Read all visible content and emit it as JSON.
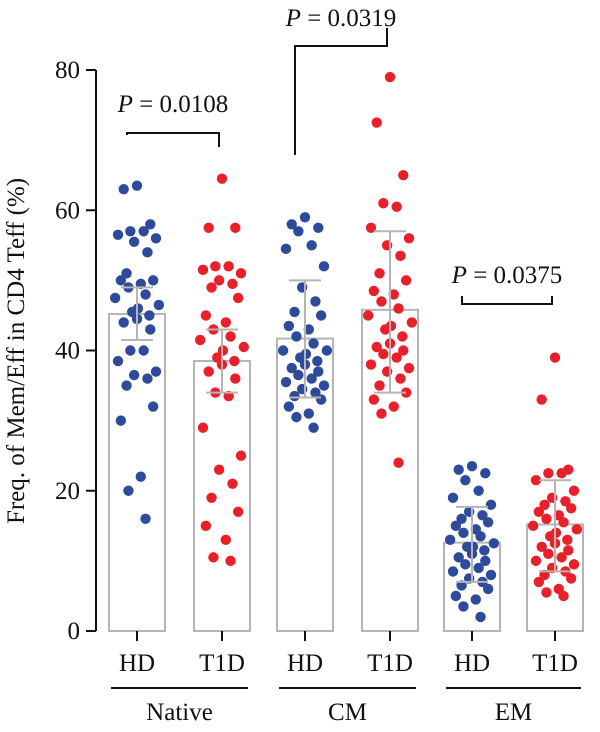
{
  "chart_data": {
    "type": "bar",
    "ylabel": "Freq. of Mem/Eff in CD4 Teff (%)",
    "ylim": [
      0,
      80
    ],
    "yticks": [
      0,
      20,
      40,
      60,
      80
    ],
    "grid": false,
    "colors": {
      "HD": "#2e4b9b",
      "T1D": "#e8202a",
      "bar_outline": "#b5b5b5",
      "axis": "#111111"
    },
    "groups": [
      {
        "name": "Native",
        "bars": [
          {
            "label": "HD",
            "mean": 45.2,
            "error": [
              41.5,
              49.0
            ],
            "points": [
              63.5,
              63.0,
              58.0,
              57.0,
              57.0,
              56.5,
              56.0,
              55.5,
              54.0,
              51.0,
              50.0,
              50.0,
              49.5,
              49.0,
              48.0,
              47.5,
              46.5,
              46.0,
              45.5,
              45.0,
              44.5,
              44.0,
              43.0,
              40.0,
              40.0,
              38.5,
              37.0,
              36.5,
              36.0,
              35.0,
              32.0,
              30.0,
              22.0,
              20.0,
              16.0
            ]
          },
          {
            "label": "T1D",
            "mean": 38.5,
            "error": [
              34.0,
              43.0
            ],
            "points": [
              64.5,
              57.5,
              57.5,
              52.0,
              52.0,
              51.5,
              51.0,
              50.0,
              49.5,
              49.0,
              47.5,
              45.0,
              44.0,
              43.0,
              42.0,
              41.5,
              40.5,
              40.0,
              39.0,
              38.5,
              38.0,
              37.0,
              36.0,
              34.0,
              33.5,
              29.0,
              25.0,
              23.0,
              21.0,
              19.0,
              17.0,
              15.0,
              13.0,
              10.5,
              10.0
            ]
          }
        ],
        "pvalue": "P = 0.0108"
      },
      {
        "name": "CM",
        "bars": [
          {
            "label": "HD",
            "mean": 41.7,
            "error": [
              33.3,
              50.0
            ],
            "points": [
              59.0,
              58.0,
              57.5,
              57.0,
              55.0,
              54.5,
              52.0,
              49.0,
              47.0,
              45.5,
              45.0,
              43.5,
              43.0,
              42.0,
              41.0,
              40.0,
              40.0,
              39.5,
              39.0,
              38.5,
              38.0,
              37.5,
              37.0,
              36.5,
              36.0,
              35.5,
              35.0,
              34.5,
              34.0,
              33.5,
              33.0,
              32.0,
              31.0,
              30.5,
              29.0
            ]
          },
          {
            "label": "T1D",
            "mean": 45.8,
            "error": [
              34.0,
              57.0
            ],
            "points": [
              79.0,
              72.5,
              65.0,
              61.0,
              60.5,
              57.5,
              56.0,
              55.0,
              53.5,
              51.0,
              50.0,
              48.5,
              48.0,
              47.0,
              46.0,
              45.0,
              44.0,
              43.5,
              43.0,
              42.0,
              41.0,
              40.5,
              40.0,
              39.5,
              39.0,
              38.0,
              37.5,
              37.0,
              36.0,
              35.0,
              34.0,
              33.0,
              32.0,
              31.0,
              24.0
            ]
          }
        ],
        "pvalue": "P = 0.0319"
      },
      {
        "name": "EM",
        "bars": [
          {
            "label": "HD",
            "mean": 12.6,
            "error": [
              7.0,
              17.7
            ],
            "points": [
              23.5,
              23.0,
              22.5,
              21.5,
              20.0,
              19.0,
              18.0,
              17.0,
              16.5,
              16.0,
              15.5,
              15.0,
              14.5,
              14.0,
              13.5,
              13.0,
              12.5,
              12.0,
              12.0,
              11.5,
              11.0,
              10.5,
              10.0,
              9.5,
              9.0,
              8.5,
              8.0,
              7.5,
              7.0,
              6.5,
              6.0,
              5.0,
              4.5,
              3.5,
              2.0
            ]
          },
          {
            "label": "T1D",
            "mean": 15.2,
            "error": [
              8.5,
              21.5
            ],
            "points": [
              39.0,
              33.0,
              23.0,
              22.5,
              22.5,
              21.5,
              20.0,
              19.0,
              18.5,
              18.0,
              17.5,
              17.0,
              16.5,
              16.0,
              15.5,
              15.0,
              14.5,
              14.0,
              13.5,
              13.0,
              12.5,
              12.0,
              11.5,
              11.0,
              10.5,
              10.0,
              9.5,
              9.0,
              8.5,
              8.0,
              7.5,
              7.0,
              6.0,
              5.5,
              5.0
            ]
          }
        ],
        "pvalue": "P = 0.0375"
      }
    ]
  }
}
